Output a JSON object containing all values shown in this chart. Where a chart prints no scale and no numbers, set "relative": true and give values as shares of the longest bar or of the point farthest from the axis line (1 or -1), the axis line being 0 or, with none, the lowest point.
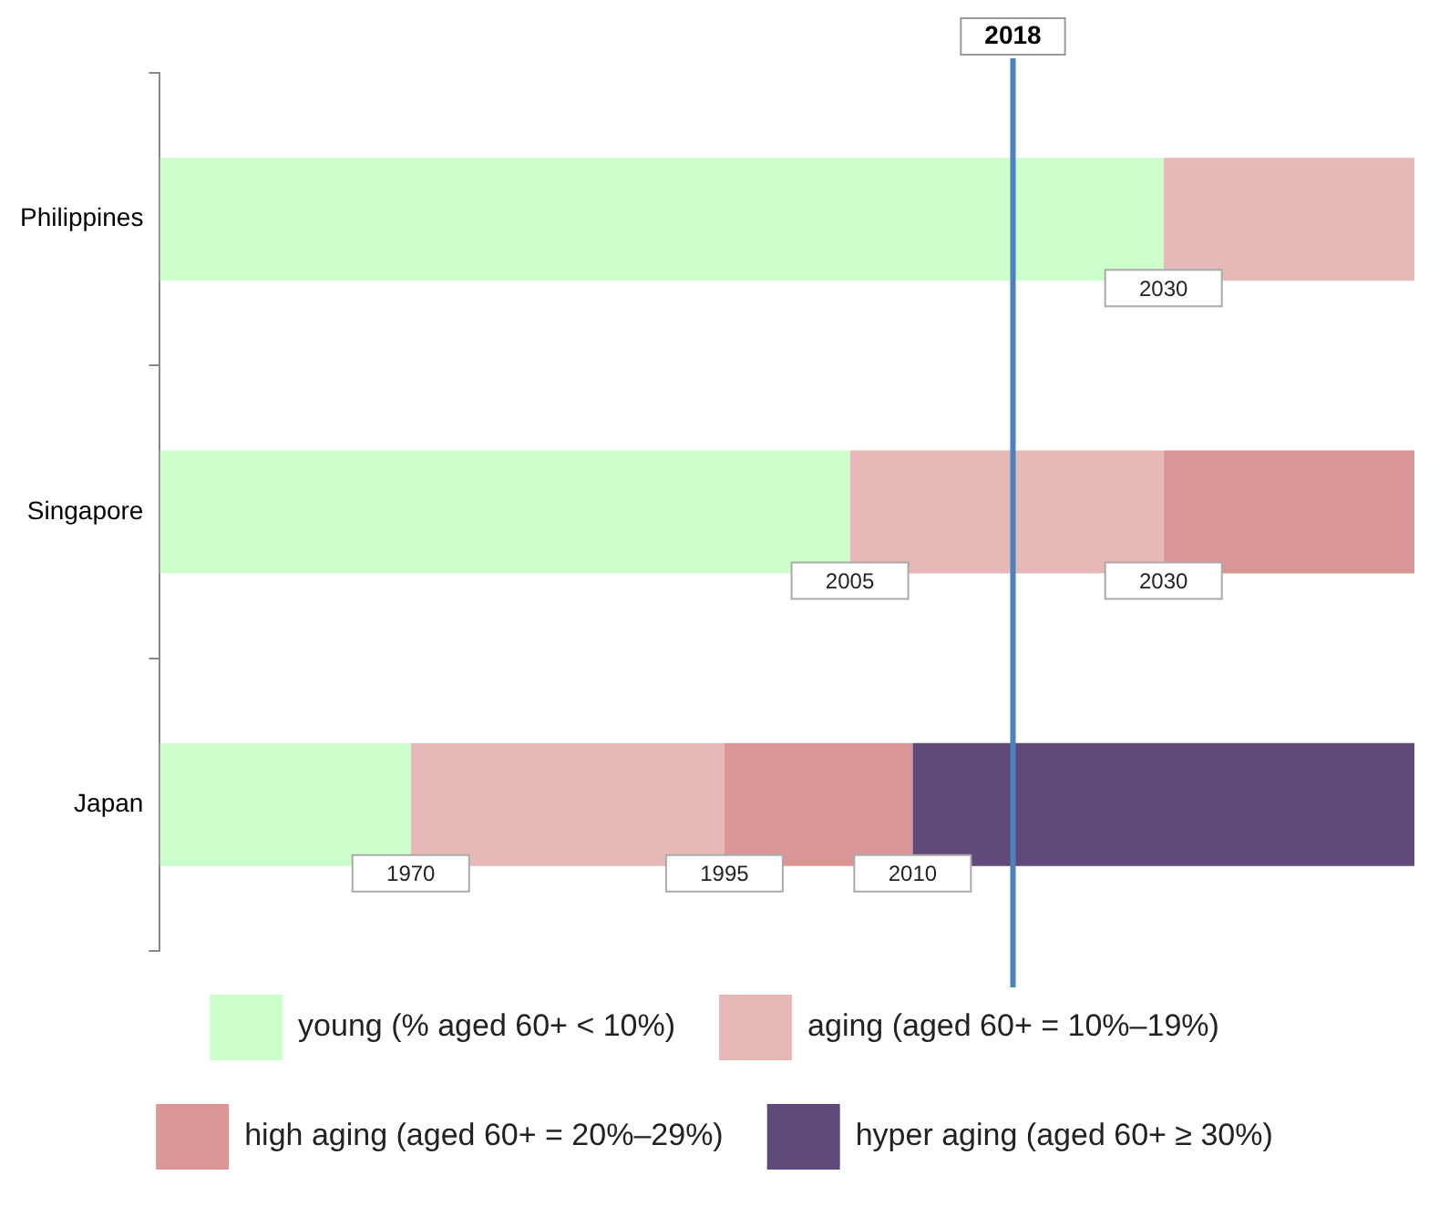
{
  "chart_data": {
    "type": "bar",
    "orientation": "horizontal",
    "stacked": true,
    "relative": true,
    "categories": [
      "Philippines",
      "Singapore",
      "Japan"
    ],
    "series": [
      {
        "name": "young (% aged 60+ < 10%)",
        "color": "#ccffcc",
        "values": [
          0.8,
          0.55,
          0.2
        ]
      },
      {
        "name": "aging (aged 60+ = 10%–19%)",
        "color": "#e6b8b7",
        "values": [
          0.2,
          0.25,
          0.25
        ]
      },
      {
        "name": "high aging (aged 60+ = 20%–29%)",
        "color": "#d99694",
        "values": [
          null,
          0.2,
          0.15
        ]
      },
      {
        "name": "hyper aging (aged 60+ ≥ 30%)",
        "color": "#604a7b",
        "values": [
          null,
          null,
          0.4
        ]
      }
    ],
    "tick_labels": "y",
    "legend": "bottom",
    "ref_lines": [
      {
        "axis": "x",
        "value": 0.68,
        "color": "#4f81bd"
      }
    ],
    "annotations": [
      "2018",
      {
        "text": "2030",
        "x": 0.8,
        "y": "Philippines"
      },
      {
        "text": "2005",
        "x": 0.55,
        "y": "Singapore"
      },
      {
        "text": "2030",
        "x": 0.8,
        "y": "Singapore"
      },
      {
        "text": "1970",
        "x": 0.2,
        "y": "Japan"
      },
      {
        "text": "1995",
        "x": 0.45,
        "y": "Japan"
      },
      {
        "text": "2010",
        "x": 0.6,
        "y": "Japan"
      }
    ]
  }
}
